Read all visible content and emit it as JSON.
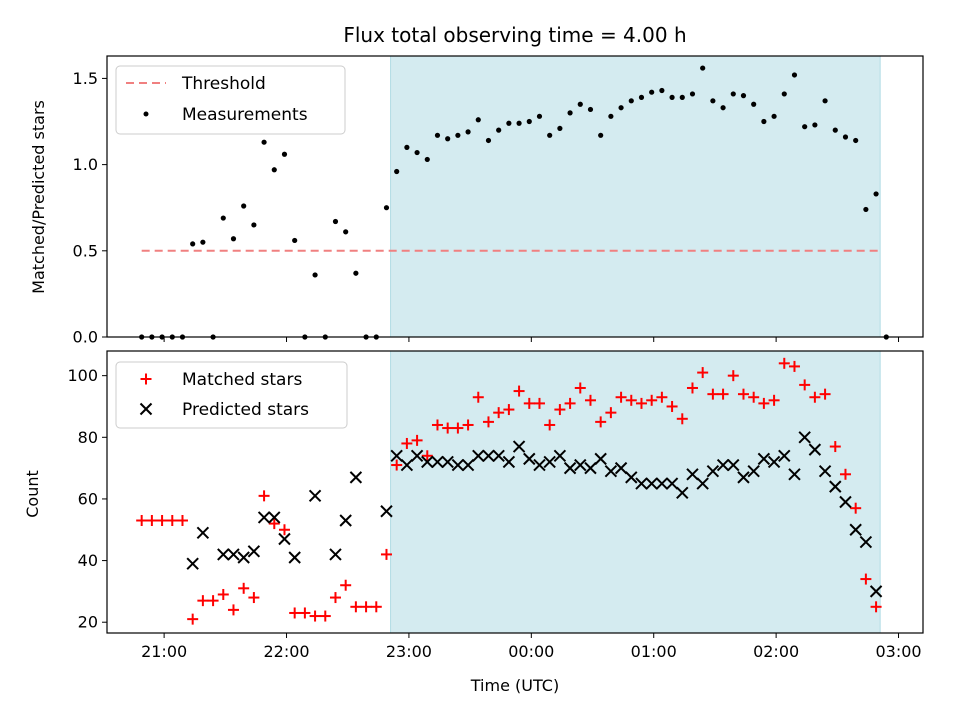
{
  "chart_data": {
    "title": "Flux total observing time = 4.00 h",
    "xlabel": "Time (UTC)",
    "x_range": [
      "20:32",
      "03:12"
    ],
    "x_tick_labels": [
      "21:00",
      "22:00",
      "23:00",
      "00:00",
      "01:00",
      "02:00",
      "03:00"
    ],
    "x_ticks": [
      "21:00",
      "22:00",
      "23:00",
      "00:00",
      "01:00",
      "02:00",
      "03:00"
    ],
    "shaded_span": [
      "22:51",
      "02:51"
    ],
    "colors": {
      "shade": "#d4ebf0",
      "shade_edge": "#b2dde5",
      "threshold": "#f08080",
      "measurement": "#000000",
      "matched": "#ff0000",
      "predicted": "#000000"
    },
    "panels": [
      {
        "type": "scatter",
        "ylabel": "Matched/Predicted stars",
        "ylim": [
          0,
          1.63
        ],
        "yticks": [
          0,
          0.5,
          1.0,
          1.5
        ],
        "ytick_labels": [
          "0.0",
          "0.5",
          "1.0",
          "1.5"
        ],
        "legend_position": "top-left",
        "threshold": {
          "name": "Threshold",
          "value": 0.5,
          "x_start": "20:49",
          "x_end": "02:51"
        },
        "series": [
          {
            "name": "Measurements",
            "marker": "dot",
            "x": [
              "20:49",
              "20:54",
              "20:59",
              "21:04",
              "21:09",
              "21:14",
              "21:19",
              "21:29",
              "21:34",
              "21:39",
              "21:44",
              "21:49",
              "21:54",
              "21:59",
              "22:04",
              "22:09",
              "22:14",
              "22:19",
              "22:24",
              "22:29",
              "22:34",
              "22:39",
              "22:44",
              "22:49",
              "22:54",
              "22:59",
              "23:04",
              "23:09",
              "23:14",
              "23:19",
              "23:24",
              "23:29",
              "23:34",
              "23:39",
              "23:44",
              "23:49",
              "23:54",
              "23:59",
              "00:04",
              "00:09",
              "00:14",
              "00:19",
              "00:24",
              "00:29",
              "00:34",
              "00:39",
              "00:44",
              "00:49",
              "00:54",
              "00:59",
              "01:04",
              "01:09",
              "01:14",
              "01:19",
              "01:24",
              "01:29",
              "01:34",
              "01:39",
              "01:44",
              "01:49",
              "01:54",
              "01:59",
              "02:04",
              "02:09",
              "02:14",
              "02:19",
              "02:24",
              "02:29",
              "02:34",
              "02:39",
              "02:44",
              "02:49",
              "02:54",
              "21:24"
            ],
            "y": [
              0,
              0,
              0,
              0,
              0,
              0.54,
              0.55,
              0.69,
              0.57,
              0.76,
              0.65,
              1.13,
              0.97,
              1.06,
              0.56,
              0,
              0.36,
              0,
              0.67,
              0.61,
              0.37,
              0,
              0,
              0.75,
              0.96,
              1.1,
              1.07,
              1.03,
              1.17,
              1.15,
              1.17,
              1.19,
              1.26,
              1.14,
              1.2,
              1.24,
              1.24,
              1.25,
              1.28,
              1.17,
              1.21,
              1.3,
              1.35,
              1.32,
              1.17,
              1.28,
              1.33,
              1.37,
              1.39,
              1.42,
              1.43,
              1.39,
              1.39,
              1.41,
              1.56,
              1.37,
              1.33,
              1.41,
              1.4,
              1.35,
              1.25,
              1.28,
              1.41,
              1.52,
              1.22,
              1.23,
              1.37,
              1.2,
              1.16,
              1.14,
              0.74,
              0.83,
              0,
              0
            ]
          }
        ]
      },
      {
        "type": "scatter",
        "ylabel": "Count",
        "ylim": [
          16.5,
          108
        ],
        "yticks": [
          20,
          40,
          60,
          80,
          100
        ],
        "ytick_labels": [
          "20",
          "40",
          "60",
          "80",
          "100"
        ],
        "legend_position": "top-left",
        "series": [
          {
            "name": "Matched stars",
            "marker": "plus",
            "x": [
              "20:49",
              "20:54",
              "20:59",
              "21:04",
              "21:09",
              "21:14",
              "21:19",
              "21:24",
              "21:29",
              "21:34",
              "21:39",
              "21:44",
              "21:49",
              "21:54",
              "21:59",
              "22:04",
              "22:09",
              "22:14",
              "22:19",
              "22:24",
              "22:29",
              "22:34",
              "22:39",
              "22:44",
              "22:49",
              "22:54",
              "22:59",
              "23:04",
              "23:09",
              "23:14",
              "23:19",
              "23:24",
              "23:29",
              "23:34",
              "23:39",
              "23:44",
              "23:49",
              "23:54",
              "23:59",
              "00:04",
              "00:09",
              "00:14",
              "00:19",
              "00:24",
              "00:29",
              "00:34",
              "00:39",
              "00:44",
              "00:49",
              "00:54",
              "00:59",
              "01:04",
              "01:09",
              "01:14",
              "01:19",
              "01:24",
              "01:29",
              "01:34",
              "01:39",
              "01:44",
              "01:49",
              "01:54",
              "01:59",
              "02:04",
              "02:09",
              "02:14",
              "02:19",
              "02:24",
              "02:29",
              "02:34",
              "02:39",
              "02:44",
              "02:49"
            ],
            "y": [
              53,
              53,
              53,
              53,
              53,
              21,
              27,
              27,
              29,
              24,
              31,
              28,
              61,
              52,
              50,
              23,
              23,
              22,
              22,
              28,
              32,
              25,
              25,
              25,
              42,
              71,
              78,
              79,
              74,
              84,
              83,
              83,
              84,
              93,
              85,
              88,
              89,
              95,
              91,
              91,
              84,
              89,
              91,
              96,
              92,
              85,
              88,
              93,
              92,
              91,
              92,
              93,
              90,
              86,
              96,
              101,
              94,
              94,
              100,
              94,
              93,
              91,
              92,
              104,
              103,
              97,
              93,
              94,
              77,
              68,
              57,
              34,
              25
            ]
          },
          {
            "name": "Predicted stars",
            "marker": "x",
            "x": [
              "21:14",
              "21:19",
              "21:29",
              "21:34",
              "21:39",
              "21:44",
              "21:49",
              "21:54",
              "21:59",
              "22:04",
              "22:14",
              "22:24",
              "22:29",
              "22:34",
              "22:49",
              "22:54",
              "22:59",
              "23:04",
              "23:09",
              "23:14",
              "23:19",
              "23:24",
              "23:29",
              "23:34",
              "23:39",
              "23:44",
              "23:49",
              "23:54",
              "23:59",
              "00:04",
              "00:09",
              "00:14",
              "00:19",
              "00:24",
              "00:29",
              "00:34",
              "00:39",
              "00:44",
              "00:49",
              "00:54",
              "00:59",
              "01:04",
              "01:09",
              "01:14",
              "01:19",
              "01:24",
              "01:29",
              "01:34",
              "01:39",
              "01:44",
              "01:49",
              "01:54",
              "01:59",
              "02:04",
              "02:09",
              "02:14",
              "02:19",
              "02:24",
              "02:29",
              "02:34",
              "02:39",
              "02:44",
              "02:49"
            ],
            "y": [
              39,
              49,
              42,
              42,
              41,
              43,
              54,
              54,
              47,
              41,
              61,
              42,
              53,
              67,
              56,
              74,
              71,
              74,
              72,
              72,
              72,
              71,
              71,
              74,
              74,
              74,
              72,
              77,
              73,
              71,
              72,
              74,
              70,
              71,
              70,
              73,
              69,
              70,
              67,
              65,
              65,
              65,
              65,
              62,
              68,
              65,
              69,
              71,
              71,
              67,
              69,
              73,
              72,
              74,
              68,
              80,
              76,
              69,
              64,
              59,
              50,
              46,
              30
            ]
          }
        ]
      }
    ]
  }
}
